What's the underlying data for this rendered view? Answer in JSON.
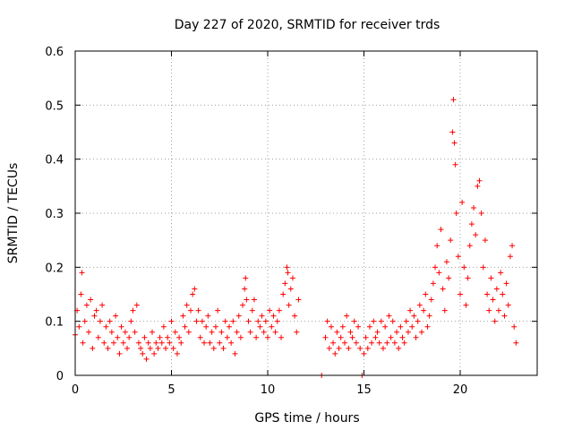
{
  "chart_data": {
    "type": "scatter",
    "title": "Day 227 of 2020, SRMTID for receiver trds",
    "xlabel": "GPS time / hours",
    "ylabel": "SRMTID / TECUs",
    "xlim": [
      0,
      24
    ],
    "ylim": [
      0,
      0.6
    ],
    "x_ticks": [
      0,
      5,
      10,
      15,
      20
    ],
    "y_ticks": [
      0,
      0.1,
      0.2,
      0.3,
      0.4,
      0.5,
      0.6
    ],
    "x_tick_labels": [
      "0",
      "5",
      "10",
      "15",
      "20"
    ],
    "y_tick_labels": [
      "0",
      "0.1",
      "0.2",
      "0.3",
      "0.4",
      "0.5",
      "0.6"
    ],
    "grid": true,
    "marker": "+",
    "colors": {
      "series": "#ff0000",
      "grid": "#a0a0a0",
      "axis": "#000000"
    },
    "series": [
      {
        "name": "SRMTID",
        "points": [
          [
            0.0,
            0.075
          ],
          [
            0.1,
            0.12
          ],
          [
            0.2,
            0.09
          ],
          [
            0.3,
            0.15
          ],
          [
            0.35,
            0.19
          ],
          [
            0.4,
            0.06
          ],
          [
            0.5,
            0.1
          ],
          [
            0.6,
            0.13
          ],
          [
            0.7,
            0.08
          ],
          [
            0.8,
            0.14
          ],
          [
            0.9,
            0.05
          ],
          [
            1.0,
            0.11
          ],
          [
            1.1,
            0.12
          ],
          [
            1.2,
            0.07
          ],
          [
            1.3,
            0.1
          ],
          [
            1.4,
            0.13
          ],
          [
            1.5,
            0.06
          ],
          [
            1.6,
            0.09
          ],
          [
            1.7,
            0.05
          ],
          [
            1.8,
            0.1
          ],
          [
            1.9,
            0.08
          ],
          [
            2.0,
            0.06
          ],
          [
            2.1,
            0.11
          ],
          [
            2.2,
            0.07
          ],
          [
            2.3,
            0.04
          ],
          [
            2.4,
            0.09
          ],
          [
            2.5,
            0.06
          ],
          [
            2.6,
            0.08
          ],
          [
            2.7,
            0.05
          ],
          [
            2.8,
            0.07
          ],
          [
            2.9,
            0.1
          ],
          [
            3.0,
            0.12
          ],
          [
            3.1,
            0.08
          ],
          [
            3.2,
            0.13
          ],
          [
            3.3,
            0.06
          ],
          [
            3.4,
            0.05
          ],
          [
            3.5,
            0.04
          ],
          [
            3.6,
            0.07
          ],
          [
            3.7,
            0.03
          ],
          [
            3.8,
            0.06
          ],
          [
            3.9,
            0.05
          ],
          [
            4.0,
            0.08
          ],
          [
            4.1,
            0.04
          ],
          [
            4.2,
            0.06
          ],
          [
            4.3,
            0.05
          ],
          [
            4.4,
            0.07
          ],
          [
            4.5,
            0.06
          ],
          [
            4.6,
            0.09
          ],
          [
            4.7,
            0.05
          ],
          [
            4.8,
            0.07
          ],
          [
            4.9,
            0.06
          ],
          [
            5.0,
            0.1
          ],
          [
            5.1,
            0.05
          ],
          [
            5.2,
            0.08
          ],
          [
            5.3,
            0.04
          ],
          [
            5.4,
            0.07
          ],
          [
            5.5,
            0.06
          ],
          [
            5.6,
            0.11
          ],
          [
            5.7,
            0.09
          ],
          [
            5.8,
            0.13
          ],
          [
            5.9,
            0.08
          ],
          [
            6.0,
            0.12
          ],
          [
            6.1,
            0.15
          ],
          [
            6.2,
            0.16
          ],
          [
            6.3,
            0.1
          ],
          [
            6.4,
            0.12
          ],
          [
            6.5,
            0.07
          ],
          [
            6.6,
            0.1
          ],
          [
            6.7,
            0.06
          ],
          [
            6.8,
            0.09
          ],
          [
            6.9,
            0.11
          ],
          [
            7.0,
            0.06
          ],
          [
            7.1,
            0.08
          ],
          [
            7.2,
            0.05
          ],
          [
            7.3,
            0.09
          ],
          [
            7.4,
            0.12
          ],
          [
            7.5,
            0.06
          ],
          [
            7.6,
            0.08
          ],
          [
            7.7,
            0.05
          ],
          [
            7.8,
            0.1
          ],
          [
            7.9,
            0.07
          ],
          [
            8.0,
            0.09
          ],
          [
            8.1,
            0.06
          ],
          [
            8.2,
            0.1
          ],
          [
            8.3,
            0.04
          ],
          [
            8.4,
            0.08
          ],
          [
            8.5,
            0.11
          ],
          [
            8.6,
            0.07
          ],
          [
            8.7,
            0.13
          ],
          [
            8.8,
            0.16
          ],
          [
            8.85,
            0.18
          ],
          [
            8.9,
            0.14
          ],
          [
            9.0,
            0.1
          ],
          [
            9.1,
            0.08
          ],
          [
            9.2,
            0.12
          ],
          [
            9.3,
            0.14
          ],
          [
            9.4,
            0.07
          ],
          [
            9.5,
            0.1
          ],
          [
            9.6,
            0.09
          ],
          [
            9.7,
            0.11
          ],
          [
            9.8,
            0.08
          ],
          [
            9.9,
            0.1
          ],
          [
            10.0,
            0.07
          ],
          [
            10.1,
            0.12
          ],
          [
            10.2,
            0.09
          ],
          [
            10.3,
            0.11
          ],
          [
            10.4,
            0.08
          ],
          [
            10.5,
            0.1
          ],
          [
            10.6,
            0.12
          ],
          [
            10.7,
            0.07
          ],
          [
            10.8,
            0.15
          ],
          [
            10.9,
            0.17
          ],
          [
            11.0,
            0.2
          ],
          [
            11.05,
            0.19
          ],
          [
            11.1,
            0.13
          ],
          [
            11.2,
            0.16
          ],
          [
            11.3,
            0.18
          ],
          [
            11.4,
            0.11
          ],
          [
            11.5,
            0.08
          ],
          [
            11.6,
            0.14
          ],
          [
            12.8,
            0.0
          ],
          [
            13.0,
            0.07
          ],
          [
            13.1,
            0.1
          ],
          [
            13.2,
            0.05
          ],
          [
            13.3,
            0.09
          ],
          [
            13.4,
            0.06
          ],
          [
            13.5,
            0.04
          ],
          [
            13.6,
            0.08
          ],
          [
            13.7,
            0.05
          ],
          [
            13.8,
            0.07
          ],
          [
            13.9,
            0.09
          ],
          [
            14.0,
            0.06
          ],
          [
            14.1,
            0.11
          ],
          [
            14.2,
            0.05
          ],
          [
            14.3,
            0.08
          ],
          [
            14.4,
            0.07
          ],
          [
            14.5,
            0.1
          ],
          [
            14.6,
            0.06
          ],
          [
            14.7,
            0.09
          ],
          [
            14.8,
            0.05
          ],
          [
            14.9,
            0.0
          ],
          [
            15.0,
            0.04
          ],
          [
            15.1,
            0.07
          ],
          [
            15.2,
            0.05
          ],
          [
            15.3,
            0.09
          ],
          [
            15.4,
            0.06
          ],
          [
            15.5,
            0.1
          ],
          [
            15.6,
            0.07
          ],
          [
            15.7,
            0.08
          ],
          [
            15.8,
            0.06
          ],
          [
            15.9,
            0.1
          ],
          [
            16.0,
            0.05
          ],
          [
            16.1,
            0.09
          ],
          [
            16.2,
            0.06
          ],
          [
            16.3,
            0.11
          ],
          [
            16.4,
            0.07
          ],
          [
            16.5,
            0.1
          ],
          [
            16.6,
            0.06
          ],
          [
            16.7,
            0.08
          ],
          [
            16.8,
            0.05
          ],
          [
            16.9,
            0.09
          ],
          [
            17.0,
            0.07
          ],
          [
            17.1,
            0.06
          ],
          [
            17.2,
            0.1
          ],
          [
            17.3,
            0.08
          ],
          [
            17.4,
            0.12
          ],
          [
            17.5,
            0.09
          ],
          [
            17.6,
            0.11
          ],
          [
            17.7,
            0.07
          ],
          [
            17.8,
            0.1
          ],
          [
            17.9,
            0.13
          ],
          [
            18.0,
            0.08
          ],
          [
            18.1,
            0.12
          ],
          [
            18.2,
            0.15
          ],
          [
            18.3,
            0.09
          ],
          [
            18.4,
            0.11
          ],
          [
            18.5,
            0.14
          ],
          [
            18.6,
            0.17
          ],
          [
            18.7,
            0.2
          ],
          [
            18.8,
            0.24
          ],
          [
            18.9,
            0.19
          ],
          [
            19.0,
            0.27
          ],
          [
            19.1,
            0.16
          ],
          [
            19.2,
            0.12
          ],
          [
            19.3,
            0.21
          ],
          [
            19.4,
            0.18
          ],
          [
            19.5,
            0.25
          ],
          [
            19.6,
            0.45
          ],
          [
            19.65,
            0.51
          ],
          [
            19.7,
            0.43
          ],
          [
            19.75,
            0.39
          ],
          [
            19.8,
            0.3
          ],
          [
            19.9,
            0.22
          ],
          [
            20.0,
            0.15
          ],
          [
            20.1,
            0.32
          ],
          [
            20.2,
            0.2
          ],
          [
            20.3,
            0.13
          ],
          [
            20.4,
            0.18
          ],
          [
            20.5,
            0.24
          ],
          [
            20.6,
            0.28
          ],
          [
            20.7,
            0.31
          ],
          [
            20.8,
            0.26
          ],
          [
            20.9,
            0.35
          ],
          [
            21.0,
            0.36
          ],
          [
            21.1,
            0.3
          ],
          [
            21.2,
            0.2
          ],
          [
            21.3,
            0.25
          ],
          [
            21.4,
            0.15
          ],
          [
            21.5,
            0.12
          ],
          [
            21.6,
            0.18
          ],
          [
            21.7,
            0.14
          ],
          [
            21.8,
            0.1
          ],
          [
            21.9,
            0.16
          ],
          [
            22.0,
            0.12
          ],
          [
            22.1,
            0.19
          ],
          [
            22.2,
            0.15
          ],
          [
            22.3,
            0.11
          ],
          [
            22.4,
            0.17
          ],
          [
            22.5,
            0.13
          ],
          [
            22.6,
            0.22
          ],
          [
            22.7,
            0.24
          ],
          [
            22.8,
            0.09
          ],
          [
            22.9,
            0.06
          ]
        ]
      }
    ]
  }
}
